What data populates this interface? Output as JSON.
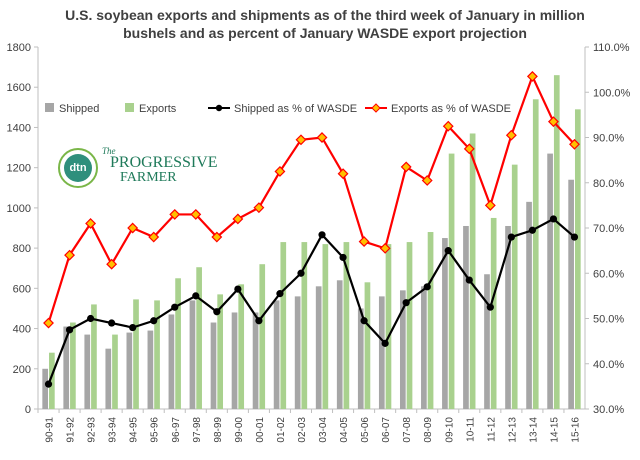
{
  "chart_data": {
    "type": "bar",
    "title_lines": [
      "U.S. soybean exports and shipments as of the third week of January  in million",
      "bushels and as percent of January WASDE export projection"
    ],
    "categories": [
      "90-91",
      "91-92",
      "92-93",
      "93-94",
      "94-95",
      "95-96",
      "96-97",
      "97-98",
      "98-99",
      "99-00",
      "00-01",
      "01-02",
      "02-03",
      "03-04",
      "04-05",
      "05-06",
      "06-07",
      "07-08",
      "08-09",
      "09-10",
      "10-11",
      "11-12",
      "12-13",
      "13-14",
      "14-15",
      "15-16"
    ],
    "ylim": [
      0,
      1800
    ],
    "y_ticks": [
      "0",
      "200",
      "400",
      "600",
      "800",
      "1000",
      "1200",
      "1400",
      "1600",
      "1800"
    ],
    "y2lim": [
      30.0,
      110.0
    ],
    "y2_ticks": [
      "30.0%",
      "40.0%",
      "50.0%",
      "60.0%",
      "70.0%",
      "80.0%",
      "90.0%",
      "100.0%",
      "110.0%"
    ],
    "grid": false,
    "legend_position": "top",
    "series": [
      {
        "name": "Shipped",
        "type": "bar",
        "axis": "left",
        "color": "#a6a6a6",
        "values": [
          200,
          410,
          370,
          300,
          380,
          390,
          470,
          540,
          430,
          480,
          480,
          540,
          560,
          610,
          640,
          500,
          560,
          590,
          610,
          850,
          910,
          670,
          910,
          1030,
          1270,
          1140
        ]
      },
      {
        "name": "Exports",
        "type": "bar",
        "axis": "left",
        "color": "#a9d18e",
        "values": [
          280,
          430,
          520,
          370,
          545,
          540,
          650,
          705,
          570,
          620,
          720,
          830,
          830,
          820,
          830,
          630,
          820,
          830,
          880,
          1270,
          1370,
          950,
          1215,
          1540,
          1660,
          1490
        ]
      },
      {
        "name": "Shipped as % of WASDE",
        "type": "line",
        "axis": "right",
        "color": "#000000",
        "values": [
          35.5,
          47.5,
          50.0,
          49.0,
          48.0,
          49.5,
          52.5,
          55.0,
          51.5,
          56.5,
          49.5,
          55.5,
          60.0,
          68.5,
          63.5,
          49.5,
          44.5,
          53.5,
          57.0,
          65.0,
          58.5,
          52.5,
          68.0,
          69.5,
          72.0,
          68.0
        ]
      },
      {
        "name": "Exports as % of WASDE",
        "type": "line",
        "axis": "right",
        "color": "#ff0000",
        "marker_color": "#ffc000",
        "values": [
          49.0,
          64.0,
          71.0,
          62.0,
          70.0,
          68.0,
          73.0,
          73.0,
          68.0,
          72.0,
          74.5,
          82.5,
          89.5,
          90.0,
          82.0,
          67.0,
          65.5,
          83.5,
          80.5,
          92.5,
          87.5,
          75.0,
          90.5,
          103.5,
          93.5,
          88.5
        ]
      }
    ]
  },
  "logo": {
    "badge_text": "dtn",
    "word_top": "The",
    "word_main": "PROGRESSIVE",
    "word_sub": "FARMER"
  }
}
